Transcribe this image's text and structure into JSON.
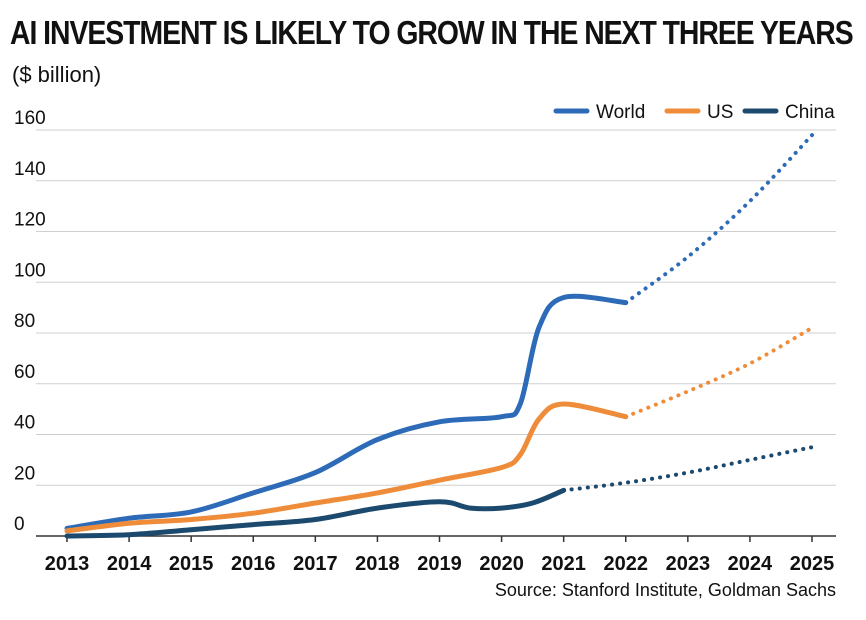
{
  "chart_data": {
    "type": "line",
    "title": "AI INVESTMENT IS LIKELY TO GROW IN THE NEXT THREE YEARS",
    "ylabel": "($ billion)",
    "source": "Source: Stanford Institute, Goldman Sachs",
    "x": [
      2013,
      2014,
      2015,
      2016,
      2017,
      2018,
      2019,
      2020,
      2021,
      2022,
      2023,
      2024,
      2025
    ],
    "x_tick_labels": [
      "2013",
      "2014",
      "2015",
      "2016",
      "2017",
      "2018",
      "2019",
      "2020",
      "2021",
      "2022",
      "2023",
      "2024",
      "2025"
    ],
    "y_ticks": [
      0,
      20,
      40,
      60,
      80,
      100,
      120,
      140,
      160
    ],
    "ylim": [
      0,
      160
    ],
    "grid": "horizontal",
    "legend_position": "top-right",
    "projection_style": "dotted",
    "series": [
      {
        "name": "World",
        "color": "#2d6bb8",
        "actual_x": [
          2013,
          2014,
          2015,
          2016,
          2017,
          2018,
          2019,
          2020,
          2020.3,
          2020.6,
          2021,
          2022
        ],
        "actual_y": [
          3,
          7,
          9.5,
          17,
          25,
          38,
          45,
          47,
          52,
          82,
          94,
          92
        ],
        "projected_x": [
          2022,
          2023,
          2024,
          2025
        ],
        "projected_y": [
          92,
          110,
          132,
          158
        ]
      },
      {
        "name": "US",
        "color": "#ef8c3a",
        "actual_x": [
          2013,
          2014,
          2015,
          2016,
          2017,
          2018,
          2019,
          2020,
          2020.3,
          2020.6,
          2021,
          2022
        ],
        "actual_y": [
          2,
          5,
          6.5,
          9,
          13,
          17,
          22,
          27,
          32,
          46,
          52,
          47
        ],
        "projected_x": [
          2022,
          2023,
          2024,
          2025
        ],
        "projected_y": [
          47,
          57,
          68,
          82
        ]
      },
      {
        "name": "China",
        "color": "#1c4a6e",
        "actual_x": [
          2013,
          2014,
          2015,
          2016,
          2017,
          2018,
          2019,
          2019.5,
          2020,
          2020.5,
          2021
        ],
        "actual_y": [
          0,
          0.5,
          2.5,
          4.5,
          6.5,
          11,
          13.5,
          11,
          11,
          13,
          18
        ],
        "projected_x": [
          2021,
          2022,
          2023,
          2024,
          2025
        ],
        "projected_y": [
          18,
          21,
          25,
          30,
          35
        ]
      }
    ]
  }
}
